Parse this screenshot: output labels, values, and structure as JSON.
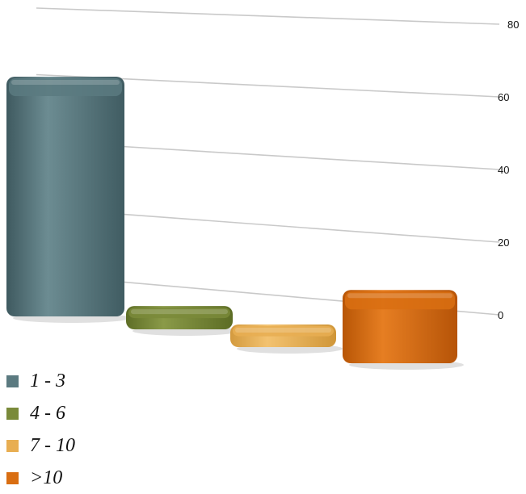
{
  "chart_data": {
    "type": "bar",
    "categories": [
      "1 - 3",
      "4 - 6",
      "7 - 10",
      ">10"
    ],
    "values": [
      72,
      7,
      5,
      22
    ],
    "ylim": [
      0,
      80
    ],
    "yticks": [
      0,
      20,
      40,
      60,
      80
    ],
    "grid": true,
    "legend_position": "bottom-left",
    "colors": {
      "1 - 3": "#5b7a80",
      "4 - 6": "#7a8a3a",
      "7 - 10": "#e8ae52",
      ">10": "#d96e12"
    }
  }
}
